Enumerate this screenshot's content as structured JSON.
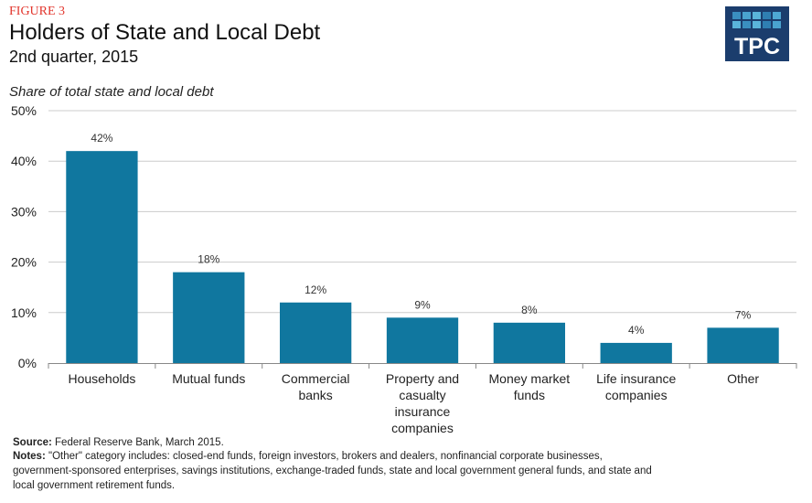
{
  "header": {
    "figure_label": "FIGURE 3",
    "title": "Holders of State and Local Debt",
    "subtitle": "2nd quarter, 2015",
    "logo_text": "TPC"
  },
  "colors": {
    "bar": "#10779f",
    "figure_label": "#e2352c",
    "logo_bg": "#1b3d6d",
    "grid": "#cccccc"
  },
  "chart_data": {
    "type": "bar",
    "title": "Holders of State and Local Debt",
    "ylabel": "Share of total state and local debt",
    "xlabel": "",
    "ylim": [
      0,
      50
    ],
    "yticks": [
      0,
      10,
      20,
      30,
      40,
      50
    ],
    "ytick_labels": [
      "0%",
      "10%",
      "20%",
      "30%",
      "40%",
      "50%"
    ],
    "grid": true,
    "categories": [
      [
        "Households"
      ],
      [
        "Mutual funds"
      ],
      [
        "Commercial",
        "banks"
      ],
      [
        "Property and",
        "casualty",
        "insurance",
        "companies"
      ],
      [
        "Money market",
        "funds"
      ],
      [
        "Life insurance",
        "companies"
      ],
      [
        "Other"
      ]
    ],
    "values": [
      42,
      18,
      12,
      9,
      8,
      4,
      7
    ],
    "data_labels": [
      "42%",
      "18%",
      "12%",
      "9%",
      "8%",
      "4%",
      "7%"
    ]
  },
  "footer": {
    "source_label": "Source:",
    "source_text": "Federal Reserve Bank, March 2015.",
    "notes_label": "Notes:",
    "notes_line1": "\"Other\" category includes: closed-end funds, foreign investors, brokers and dealers, nonfinancial corporate businesses,",
    "notes_line2": "government-sponsored enterprises, savings institutions, exchange-traded funds, state and local government general funds, and state and",
    "notes_line3": "local government retirement funds."
  }
}
